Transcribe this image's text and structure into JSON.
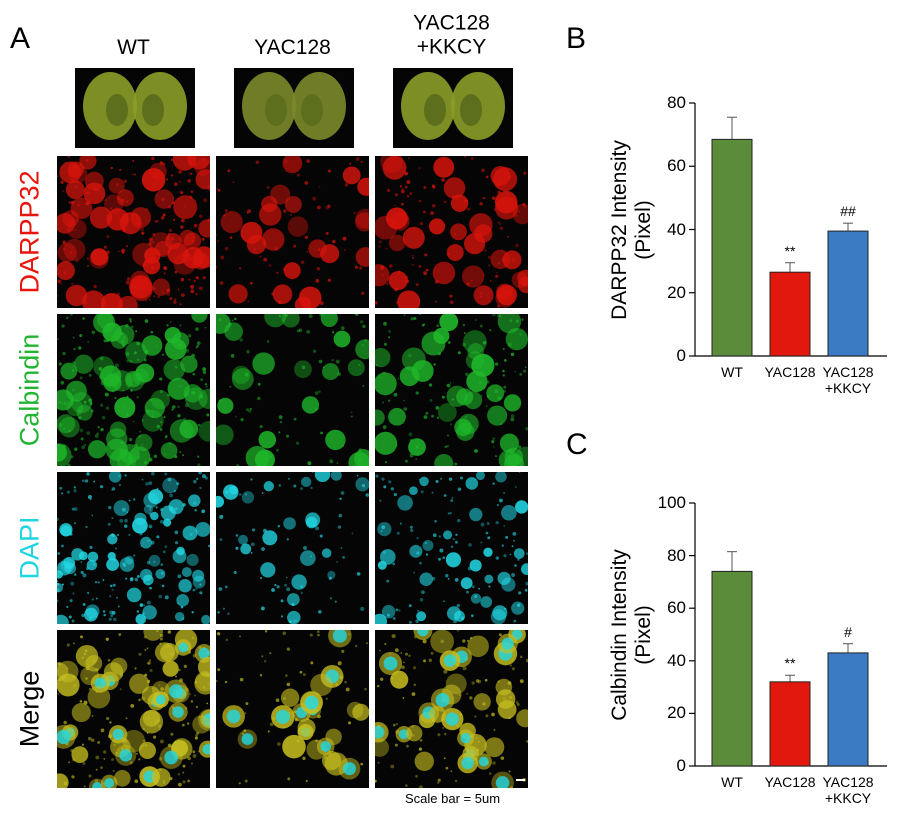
{
  "panel_a": {
    "label": "A",
    "columns": [
      "WT",
      "YAC128",
      "YAC128\n+KKCY"
    ],
    "rows": [
      "DARPP32",
      "Calbindin",
      "DAPI",
      "Merge"
    ],
    "row_colors": [
      "#e8150d",
      "#22b532",
      "#1fd5e0",
      "#000000"
    ],
    "scale_bar": "Scale bar = 5um"
  },
  "chart_data": [
    {
      "type": "bar",
      "panel_label": "B",
      "y_label": "DARPP32 Intensity\n(Pixel)",
      "categories": [
        "WT",
        "YAC128",
        "YAC128\n+KKCY"
      ],
      "values": [
        68.5,
        26.5,
        39.5
      ],
      "errors": [
        7,
        3,
        2.5
      ],
      "annotations": [
        null,
        "**",
        "##"
      ],
      "colors": [
        "#5b8c3a",
        "#e2180f",
        "#3b7bc4"
      ],
      "ylim": [
        0,
        80
      ],
      "yticks": [
        0,
        20,
        40,
        60,
        80
      ]
    },
    {
      "type": "bar",
      "panel_label": "C",
      "y_label": "Calbindin Intensity\n(Pixel)",
      "categories": [
        "WT",
        "YAC128",
        "YAC128\n+KKCY"
      ],
      "values": [
        74,
        32,
        43
      ],
      "errors": [
        7.5,
        2.5,
        3.5
      ],
      "annotations": [
        null,
        "**",
        "#"
      ],
      "colors": [
        "#5b8c3a",
        "#e2180f",
        "#3b7bc4"
      ],
      "ylim": [
        0,
        100
      ],
      "yticks": [
        0,
        20,
        40,
        60,
        80,
        100
      ]
    }
  ]
}
